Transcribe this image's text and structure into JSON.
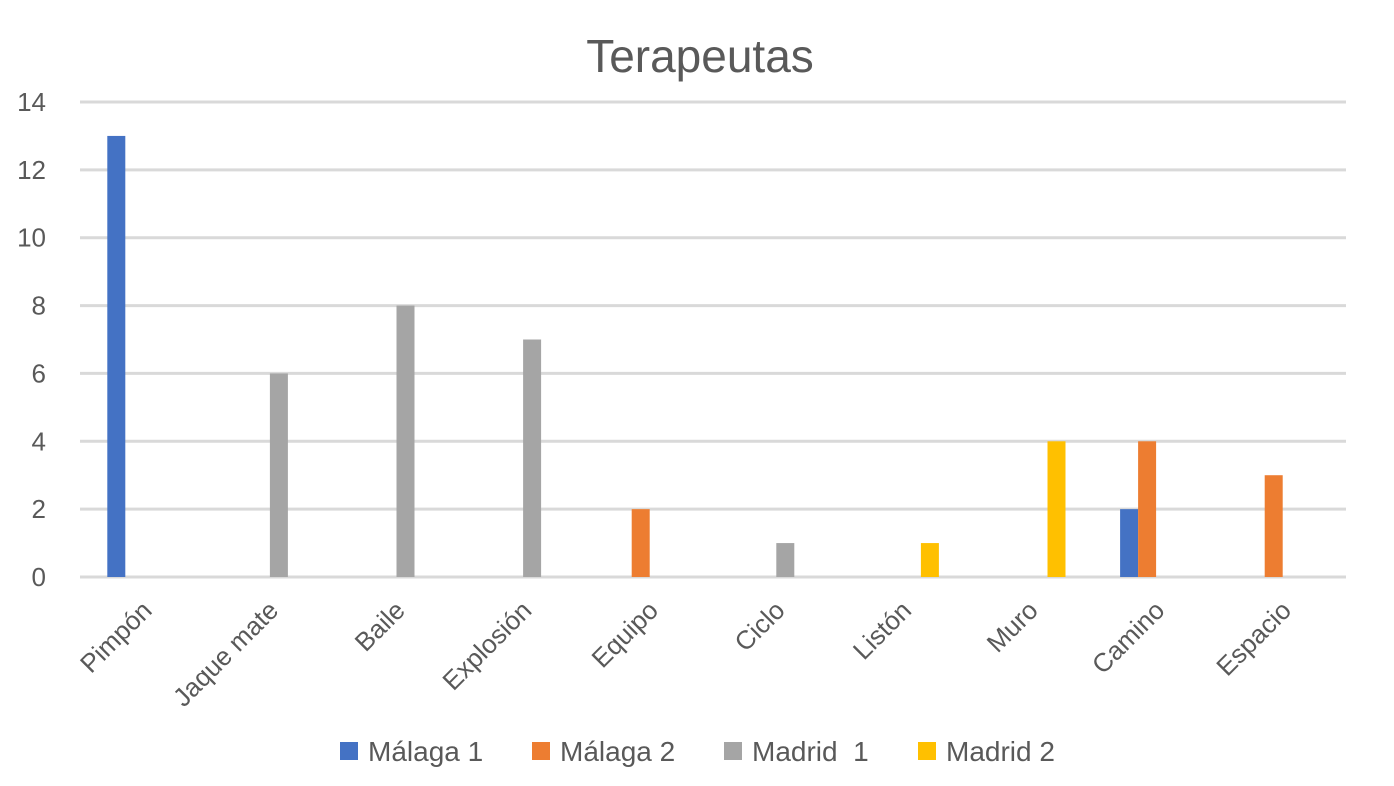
{
  "chart_data": {
    "type": "bar",
    "title": "Terapeutas",
    "xlabel": "",
    "ylabel": "",
    "ylim": [
      0,
      14
    ],
    "yticks": [
      0,
      2,
      4,
      6,
      8,
      10,
      12,
      14
    ],
    "grid": true,
    "legend_position": "bottom",
    "categories": [
      "Pimpón",
      "Jaque mate",
      "Baile",
      "Explosión",
      "Equipo",
      "Ciclo",
      "Listón",
      "Muro",
      "Camino",
      "Espacio"
    ],
    "series": [
      {
        "name": "Málaga 1",
        "color": "#4472C4",
        "values": [
          13,
          0,
          0,
          0,
          0,
          0,
          0,
          0,
          2,
          0
        ]
      },
      {
        "name": "Málaga 2",
        "color": "#ED7D31",
        "values": [
          0,
          0,
          0,
          0,
          2,
          0,
          0,
          0,
          4,
          3
        ]
      },
      {
        "name": "Madrid  1",
        "color": "#A5A5A5",
        "values": [
          0,
          6,
          8,
          7,
          0,
          1,
          0,
          0,
          0,
          0
        ]
      },
      {
        "name": "Madrid 2",
        "color": "#FFC000",
        "values": [
          0,
          0,
          0,
          0,
          0,
          0,
          1,
          4,
          0,
          0
        ]
      }
    ]
  }
}
